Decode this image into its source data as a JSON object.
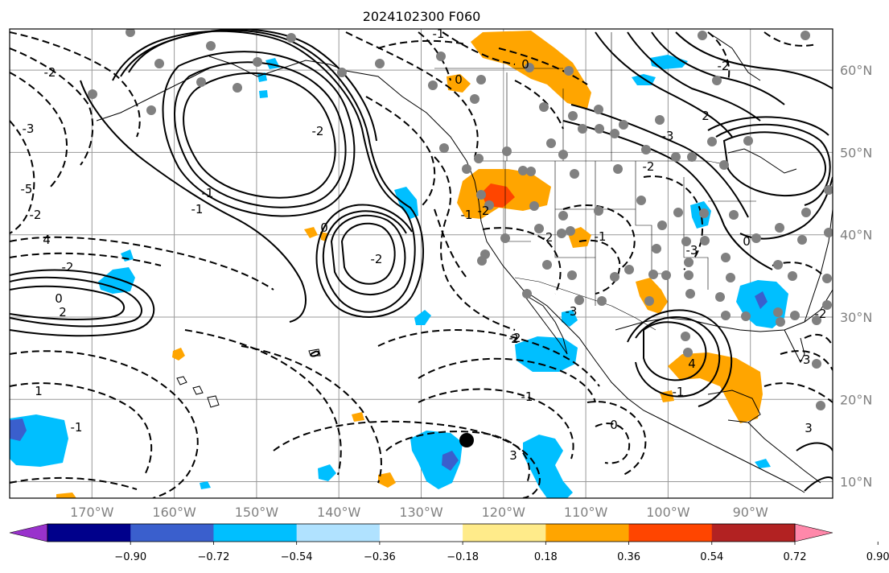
{
  "title": "2024102300 F060",
  "map": {
    "lon_range": [
      -180,
      -80
    ],
    "lat_range": [
      8,
      65
    ],
    "projection": "PlateCarree",
    "gridlines": true,
    "lon_labels": [
      "170°W",
      "160°W",
      "150°W",
      "140°W",
      "130°W",
      "120°W",
      "110°W",
      "100°W",
      "90°W"
    ],
    "lat_labels": [
      "60°N",
      "50°N",
      "40°N",
      "30°N",
      "20°N",
      "10°N"
    ],
    "contour_labels": [
      "-2",
      "-3",
      "-5",
      "-2",
      "4",
      "-2",
      "0",
      "2",
      "1",
      "-1",
      "2",
      "-1",
      "3",
      "0",
      "-1",
      "4",
      "-2",
      "2",
      "-3",
      "-2",
      "0",
      "-3",
      "-3",
      "3",
      "-2",
      "-1",
      "0",
      "-2",
      "-2",
      "-1",
      "0",
      "-3",
      "-2",
      "-1",
      "-1",
      "-2",
      "0",
      "-1",
      "-2"
    ]
  },
  "colorbar": {
    "tick_labels": [
      "−0.90",
      "−0.72",
      "−0.54",
      "−0.36",
      "−0.18",
      "0.18",
      "0.36",
      "0.54",
      "0.72",
      "0.90"
    ],
    "colors": [
      "#9932cc",
      "#00008b",
      "#3a5fcd",
      "#00bfff",
      "#b0e2ff",
      "#ffffff",
      "#ffeb8a",
      "#ffa500",
      "#ff4500",
      "#b22222",
      "#ff88aa"
    ],
    "extend": "both"
  },
  "fill_colors": {
    "neg1": "#00bfff",
    "neg2": "#3a5fcd",
    "neg3": "#00008b",
    "pos1": "#ffa500",
    "pos2": "#ff4500",
    "pos3": "#ffeb8a"
  },
  "stations_color": "#808080"
}
